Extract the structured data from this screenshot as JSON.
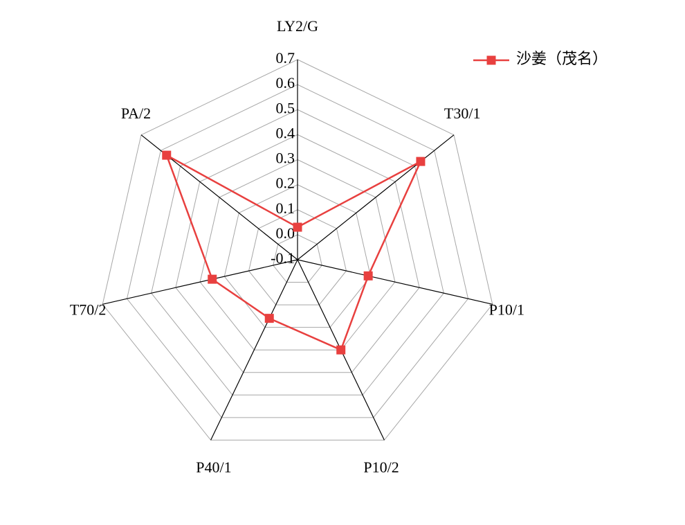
{
  "chart_data": {
    "type": "radar",
    "categories": [
      "LY2/G",
      "T30/1",
      "P10/1",
      "P10/2",
      "P40/1",
      "T70/2",
      "PA/2"
    ],
    "series": [
      {
        "name": "沙姜（茂名）",
        "color": "#e8403f",
        "values": [
          0.03,
          0.53,
          0.19,
          0.3,
          0.16,
          0.25,
          0.57
        ]
      }
    ],
    "ylim": [
      -0.1,
      0.7
    ],
    "yticks": [
      -0.1,
      {
        "value": 0,
        "label": "0.0"
      },
      0.1,
      0.2,
      0.3,
      0.4,
      0.5,
      0.6,
      0.7
    ],
    "grid": true,
    "legend": "top-right"
  }
}
